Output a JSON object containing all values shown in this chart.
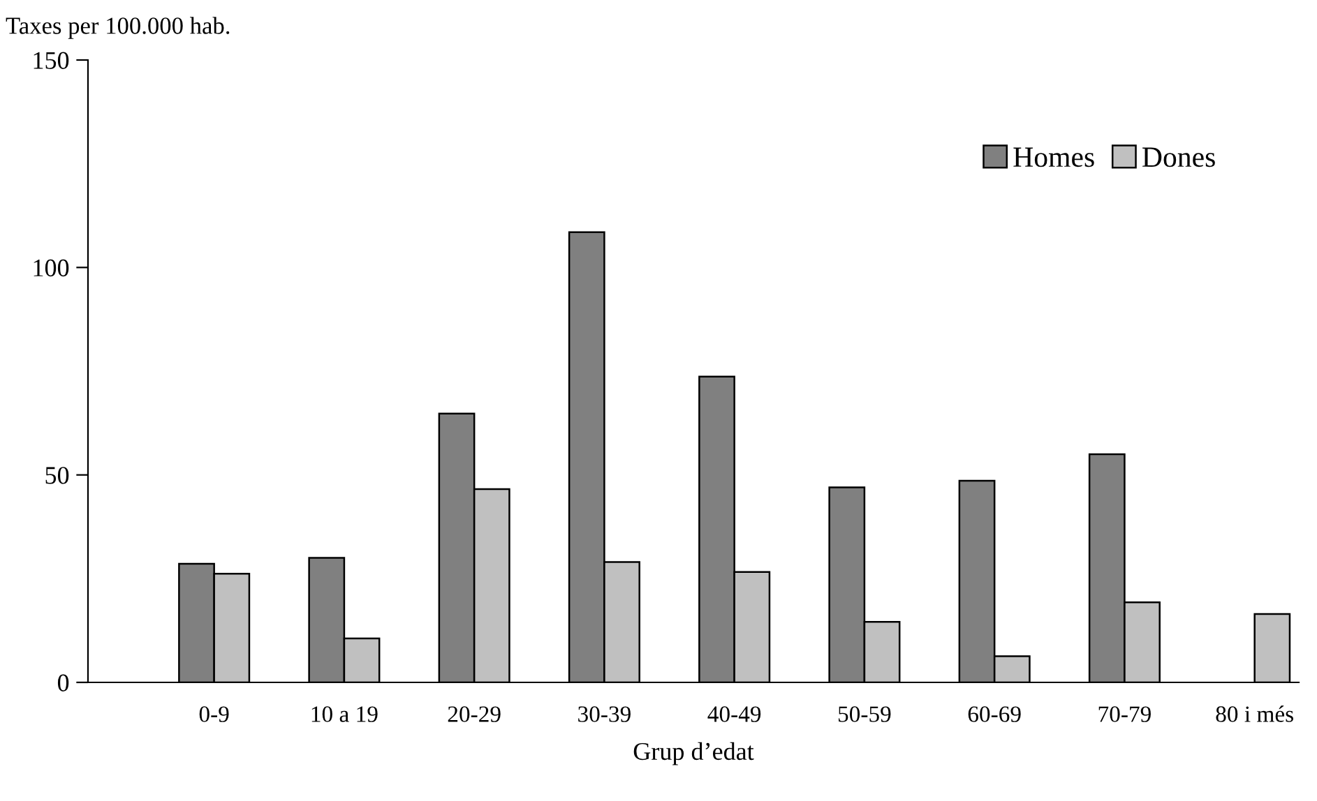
{
  "chart_data": {
    "type": "bar",
    "ylabel": "Taxes per 100.000 hab.",
    "xlabel": "Grup d’edat",
    "categories": [
      "0-9",
      "10 a 19",
      "20-29",
      "30-39",
      "40-49",
      "50-59",
      "60-69",
      "70-79",
      "80 i més"
    ],
    "series": [
      {
        "name": "Homes",
        "color": "#808080",
        "values": [
          28.6,
          30.0,
          64.8,
          108.5,
          73.7,
          47.0,
          48.6,
          55.0,
          null
        ]
      },
      {
        "name": "Dones",
        "color": "#c0c0c0",
        "values": [
          26.2,
          10.6,
          46.6,
          29.0,
          26.6,
          14.6,
          6.3,
          19.3,
          16.5
        ]
      }
    ],
    "ylim": [
      0,
      150
    ],
    "yticks": [
      0,
      50,
      100,
      150
    ],
    "grid": false,
    "legend": "top right"
  }
}
